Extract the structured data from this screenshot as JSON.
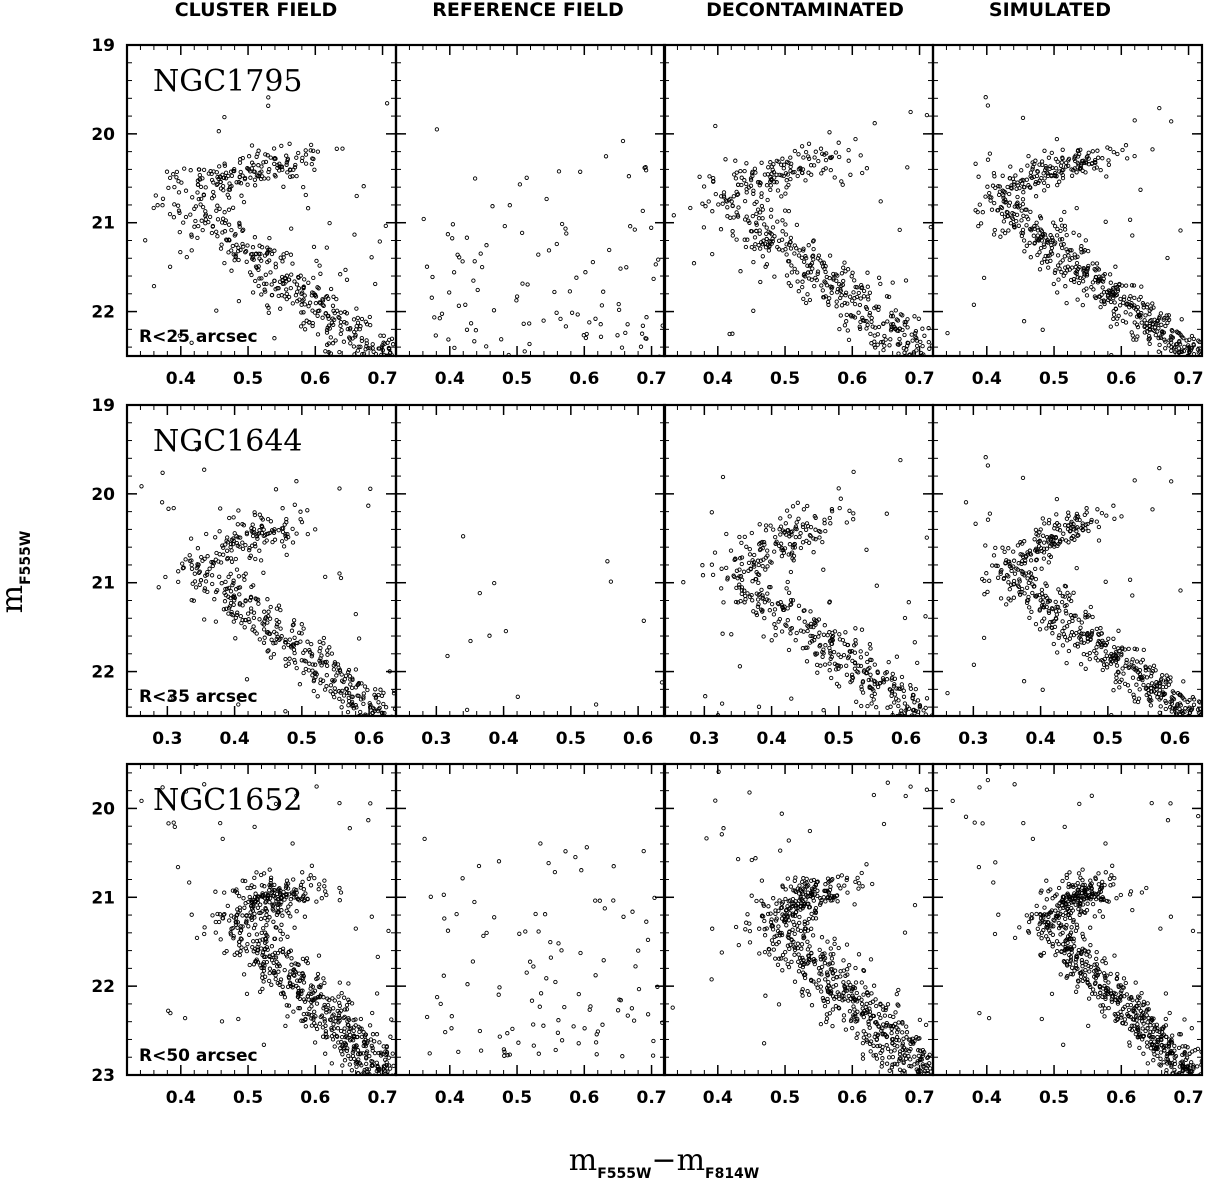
{
  "column_titles": [
    "CLUSTER FIELD",
    "REFERENCE FIELD",
    "DECONTAMINATED",
    "SIMULATED"
  ],
  "y_axis_label": {
    "main": "m",
    "sub": "F555W"
  },
  "x_axis_label": {
    "main1": "m",
    "sub1": "F555W",
    "minus": "−",
    "main2": "m",
    "sub2": "F814W"
  },
  "colors": {
    "ink": "#000000",
    "background": "#ffffff"
  },
  "chart_data": [
    {
      "type": "scatter",
      "row": 0,
      "cluster": "NGC1795",
      "radius_label": "R<25 arcsec",
      "xlim": [
        0.32,
        0.72
      ],
      "ylim": [
        22.5,
        19.0
      ],
      "xticks": [
        "0.4",
        "0.5",
        "0.6",
        "0.7"
      ],
      "yticks": [
        "19",
        "20",
        "21",
        "22"
      ],
      "approx_n": {
        "cluster": 600,
        "reference": 120,
        "decontaminated": 560,
        "simulated": 700
      }
    },
    {
      "type": "scatter",
      "row": 1,
      "cluster": "NGC1644",
      "radius_label": "R<35 arcsec",
      "xlim": [
        0.24,
        0.64
      ],
      "ylim": [
        22.5,
        19.0
      ],
      "xticks": [
        "0.3",
        "0.4",
        "0.5",
        "0.6"
      ],
      "yticks": [
        "19",
        "20",
        "21",
        "22"
      ],
      "approx_n": {
        "cluster": 550,
        "reference": 14,
        "decontaminated": 540,
        "simulated": 650
      }
    },
    {
      "type": "scatter",
      "row": 2,
      "cluster": "NGC1652",
      "radius_label": "R<50 arcsec",
      "xlim": [
        0.32,
        0.72
      ],
      "ylim": [
        23.0,
        19.5
      ],
      "xticks": [
        "0.4",
        "0.5",
        "0.6",
        "0.7"
      ],
      "yticks": [
        "20",
        "21",
        "22",
        "23"
      ],
      "approx_n": {
        "cluster": 800,
        "reference": 110,
        "decontaminated": 760,
        "simulated": 800
      }
    }
  ]
}
